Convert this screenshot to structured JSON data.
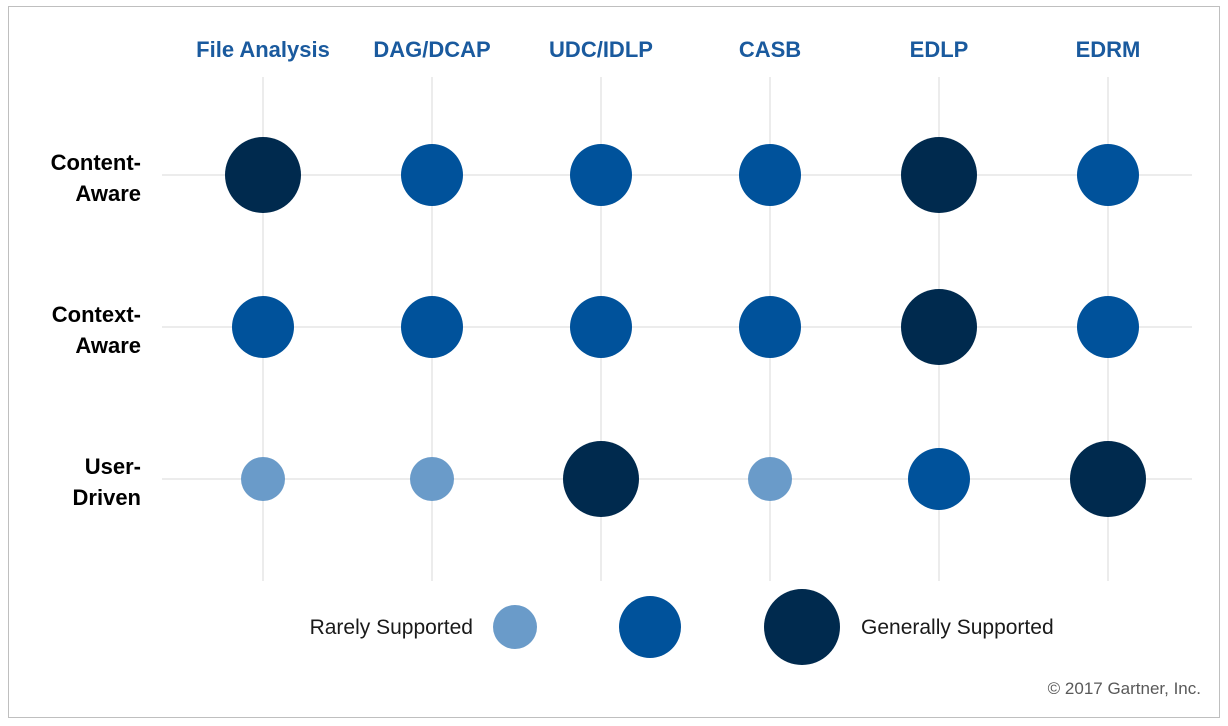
{
  "chart_data": {
    "type": "bubble-matrix",
    "columns": [
      "File Analysis",
      "DAG/DCAP",
      "UDC/IDLP",
      "CASB",
      "EDLP",
      "EDRM"
    ],
    "rows": [
      {
        "label_lines": [
          "Content-",
          "Aware"
        ],
        "values": [
          3,
          2,
          2,
          2,
          3,
          2
        ]
      },
      {
        "label_lines": [
          "Context-",
          "Aware"
        ],
        "values": [
          2,
          2,
          2,
          2,
          3,
          2
        ]
      },
      {
        "label_lines": [
          "User-",
          "Driven"
        ],
        "values": [
          1,
          1,
          3,
          1,
          2,
          3
        ]
      }
    ],
    "scale": {
      "1": {
        "name": "Rarely Supported",
        "color": "#6a9bc9"
      },
      "2": {
        "color": "#00529b"
      },
      "3": {
        "name": "Generally Supported",
        "color": "#002a4e"
      }
    },
    "legend": {
      "left_label": "Rarely Supported",
      "right_label": "Generally Supported",
      "levels": [
        1,
        2,
        3
      ]
    },
    "grid": true
  },
  "footer": {
    "copyright": "© 2017 Gartner, Inc."
  }
}
